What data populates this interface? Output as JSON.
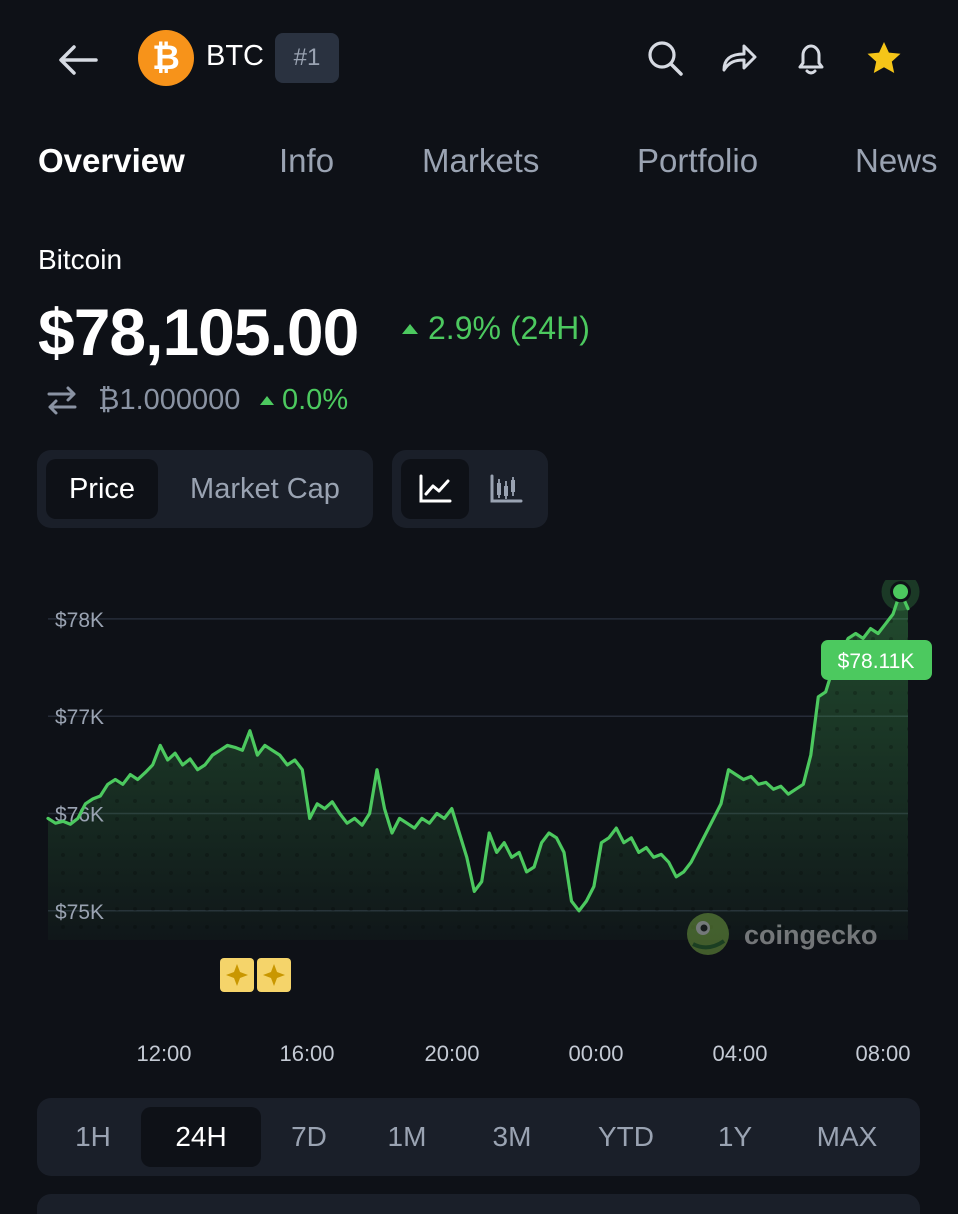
{
  "header": {
    "coin_symbol": "BTC",
    "coin_logo_glyph": "₿",
    "rank": "#1",
    "icons": [
      "back-arrow-icon",
      "search-icon",
      "share-icon",
      "bell-icon",
      "star-icon"
    ]
  },
  "tabs": [
    {
      "label": "Overview",
      "active": true
    },
    {
      "label": "Info",
      "active": false
    },
    {
      "label": "Markets",
      "active": false
    },
    {
      "label": "Portfolio",
      "active": false
    },
    {
      "label": "News",
      "active": false
    }
  ],
  "coin": {
    "name": "Bitcoin",
    "price": "$78,105.00",
    "change_24h": "2.9% (24H)",
    "btc_price": "₿1.000000",
    "btc_change": "0.0%"
  },
  "toggles": {
    "price_label": "Price",
    "market_cap_label": "Market Cap",
    "active": "Price",
    "chart_styles": [
      "line-chart-icon",
      "candlestick-icon"
    ]
  },
  "chart_data": {
    "type": "area",
    "series": [
      {
        "values": [
          75950,
          75900,
          75920,
          75890,
          75950,
          76100,
          76150,
          76180,
          76300,
          76350,
          76300,
          76400,
          76350,
          76420,
          76500,
          76700,
          76550,
          76620,
          76500,
          76560,
          76450,
          76500,
          76600,
          76650,
          76700,
          76680,
          76650,
          76850,
          76600,
          76700,
          76650,
          76600,
          76500,
          76550,
          76450,
          75950,
          76100,
          76050,
          76120,
          76000,
          75900,
          75950,
          75880,
          76000,
          76450,
          76050,
          75800,
          75950,
          75900,
          75850,
          75950,
          75900,
          76000,
          75950,
          76050,
          75800,
          75550,
          75200,
          75300,
          75800,
          75600,
          75700,
          75550,
          75600,
          75400,
          75450,
          75700,
          75800,
          75750,
          75600,
          75100,
          75000,
          75100,
          75250,
          75700,
          75750,
          75850,
          75700,
          75750,
          75600,
          75650,
          75550,
          75580,
          75500,
          75350,
          75400,
          75500,
          75650,
          75800,
          75950,
          76100,
          76450,
          76400,
          76350,
          76380,
          76300,
          76320,
          76250,
          76280,
          76200,
          76250,
          76300,
          76600,
          77200,
          77250,
          77500,
          77650,
          77800,
          77850,
          77800,
          77900,
          77850,
          77950,
          78050,
          78280,
          78105
        ]
      }
    ],
    "y_ticks": [
      "$75K",
      "$76K",
      "$77K",
      "$78K"
    ],
    "ylim": [
      74700,
      78400
    ],
    "x_ticks": [
      "12:00",
      "16:00",
      "20:00",
      "00:00",
      "04:00",
      "08:00"
    ],
    "current_label": "$78.11K",
    "watermark": "coingecko",
    "line_color": "#4cc95f",
    "grid": true
  },
  "ranges": [
    {
      "label": "1H",
      "active": false
    },
    {
      "label": "24H",
      "active": true
    },
    {
      "label": "7D",
      "active": false
    },
    {
      "label": "1M",
      "active": false
    },
    {
      "label": "3M",
      "active": false
    },
    {
      "label": "YTD",
      "active": false
    },
    {
      "label": "1Y",
      "active": false
    },
    {
      "label": "MAX",
      "active": false
    }
  ],
  "colors": {
    "background": "#0e1117",
    "surface": "#1a1f29",
    "positive": "#4cc95f",
    "muted": "#9aa3b2",
    "bitcoin": "#f7931a",
    "star": "#f5c518"
  }
}
